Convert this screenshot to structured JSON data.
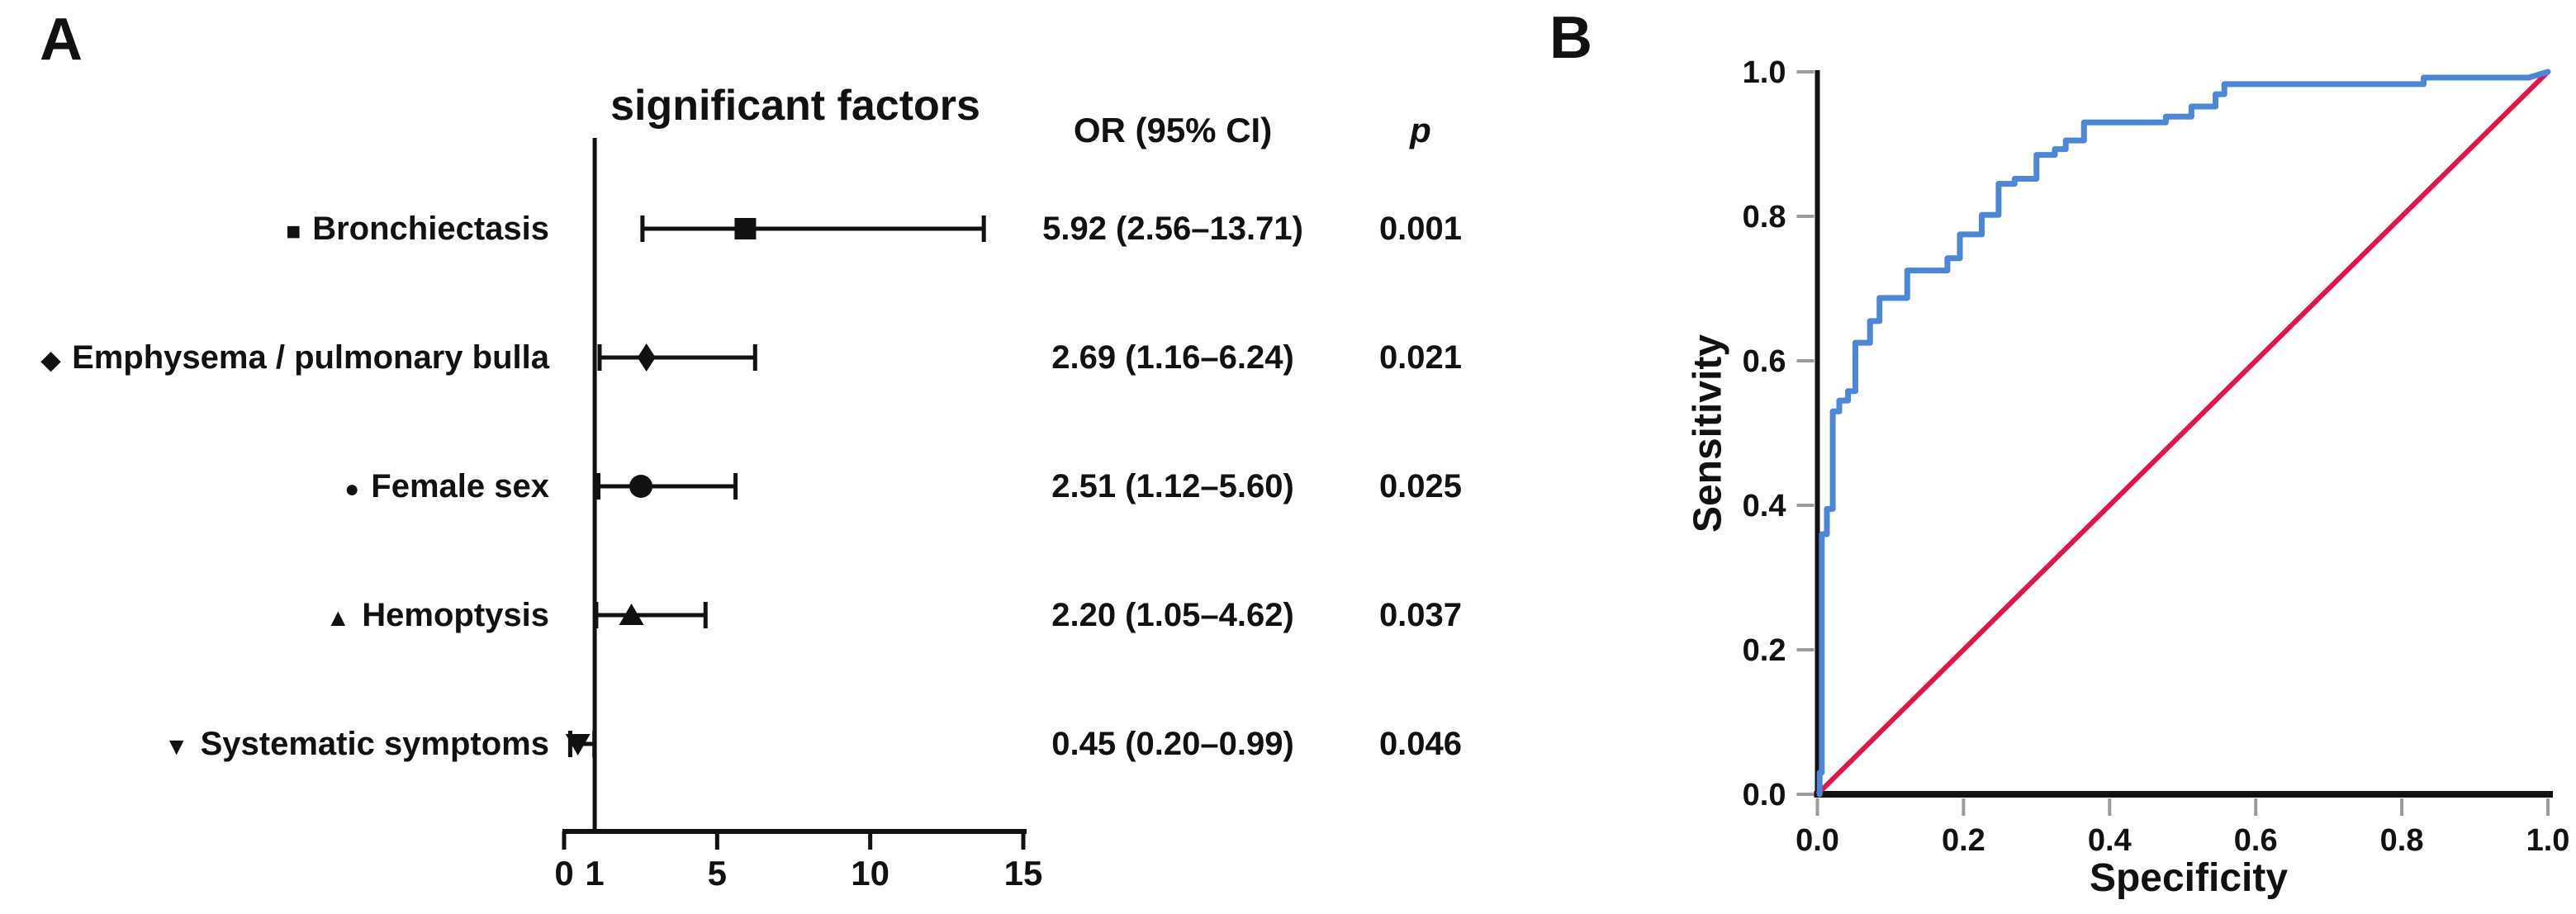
{
  "figure": {
    "panel_a": {
      "panel_label": "A",
      "title": "significant factors",
      "or_header": "OR (95% CI)",
      "p_header": "p"
    },
    "panel_b": {
      "panel_label": "B",
      "xlabel": "Specificity",
      "ylabel": "Sensitivity"
    },
    "colors": {
      "roc_curve_blue": "#4c86d8",
      "diagonal_red": "#e11548",
      "axis_black": "#111111",
      "tick_gray": "#9a9a9a"
    }
  },
  "chart_data": [
    {
      "type": "scatter",
      "subtype": "forest",
      "title": "significant factors",
      "columns": [
        "significant factors",
        "OR (95% CI)",
        "p"
      ],
      "xlim": [
        0,
        15
      ],
      "x_ticks": [
        0,
        1,
        5,
        10,
        15
      ],
      "reference_x": 1,
      "rows": [
        {
          "label": "Bronchiectasis",
          "marker": "square",
          "or": 5.92,
          "ci_low": 2.56,
          "ci_high": 13.71,
          "or_text": "5.92 (2.56–13.71)",
          "p_text": "0.001"
        },
        {
          "label": "Emphysema / pulmonary bulla",
          "marker": "diamond",
          "or": 2.69,
          "ci_low": 1.16,
          "ci_high": 6.24,
          "or_text": "2.69 (1.16–6.24)",
          "p_text": "0.021"
        },
        {
          "label": "Female sex",
          "marker": "circle",
          "or": 2.51,
          "ci_low": 1.12,
          "ci_high": 5.6,
          "or_text": "2.51 (1.12–5.60)",
          "p_text": "0.025"
        },
        {
          "label": "Hemoptysis",
          "marker": "triangle-up",
          "or": 2.2,
          "ci_low": 1.05,
          "ci_high": 4.62,
          "or_text": "2.20 (1.05–4.62)",
          "p_text": "0.037"
        },
        {
          "label": "Systematic symptoms",
          "marker": "triangle-down",
          "or": 0.45,
          "ci_low": 0.2,
          "ci_high": 0.99,
          "or_text": "0.45 (0.20–0.99)",
          "p_text": "0.046"
        }
      ]
    },
    {
      "type": "line",
      "subtype": "roc",
      "xlabel": "Specificity",
      "ylabel": "Sensitivity",
      "xlim": [
        0,
        1
      ],
      "ylim": [
        0,
        1
      ],
      "x_ticks": [
        "0.0",
        "0.2",
        "0.4",
        "0.6",
        "0.8",
        "1.0"
      ],
      "y_ticks": [
        "0.0",
        "0.2",
        "0.4",
        "0.6",
        "0.8",
        "1.0"
      ],
      "grid": false,
      "legend": "none",
      "series": [
        {
          "name": "ROC curve",
          "color": "#4c86d8",
          "points": [
            [
              0.003,
              0
            ],
            [
              0.003,
              0.03
            ],
            [
              0.006,
              0.03
            ],
            [
              0.006,
              0.36
            ],
            [
              0.013,
              0.36
            ],
            [
              0.013,
              0.395
            ],
            [
              0.021,
              0.395
            ],
            [
              0.021,
              0.53
            ],
            [
              0.03,
              0.53
            ],
            [
              0.03,
              0.545
            ],
            [
              0.042,
              0.545
            ],
            [
              0.042,
              0.558
            ],
            [
              0.052,
              0.558
            ],
            [
              0.052,
              0.625
            ],
            [
              0.072,
              0.625
            ],
            [
              0.072,
              0.655
            ],
            [
              0.085,
              0.655
            ],
            [
              0.085,
              0.687
            ],
            [
              0.123,
              0.687
            ],
            [
              0.123,
              0.725
            ],
            [
              0.178,
              0.725
            ],
            [
              0.178,
              0.742
            ],
            [
              0.195,
              0.742
            ],
            [
              0.195,
              0.775
            ],
            [
              0.225,
              0.775
            ],
            [
              0.225,
              0.802
            ],
            [
              0.248,
              0.802
            ],
            [
              0.248,
              0.845
            ],
            [
              0.27,
              0.845
            ],
            [
              0.27,
              0.852
            ],
            [
              0.3,
              0.852
            ],
            [
              0.3,
              0.885
            ],
            [
              0.325,
              0.885
            ],
            [
              0.325,
              0.893
            ],
            [
              0.34,
              0.893
            ],
            [
              0.34,
              0.905
            ],
            [
              0.365,
              0.905
            ],
            [
              0.365,
              0.93
            ],
            [
              0.477,
              0.93
            ],
            [
              0.477,
              0.938
            ],
            [
              0.512,
              0.938
            ],
            [
              0.512,
              0.952
            ],
            [
              0.545,
              0.952
            ],
            [
              0.545,
              0.969
            ],
            [
              0.557,
              0.969
            ],
            [
              0.557,
              0.983
            ],
            [
              0.83,
              0.983
            ],
            [
              0.83,
              0.992
            ],
            [
              0.974,
              0.992
            ],
            [
              1,
              1
            ]
          ]
        },
        {
          "name": "Reference diagonal",
          "color": "#e11548",
          "points": [
            [
              0,
              0
            ],
            [
              1,
              1
            ]
          ]
        }
      ]
    }
  ]
}
